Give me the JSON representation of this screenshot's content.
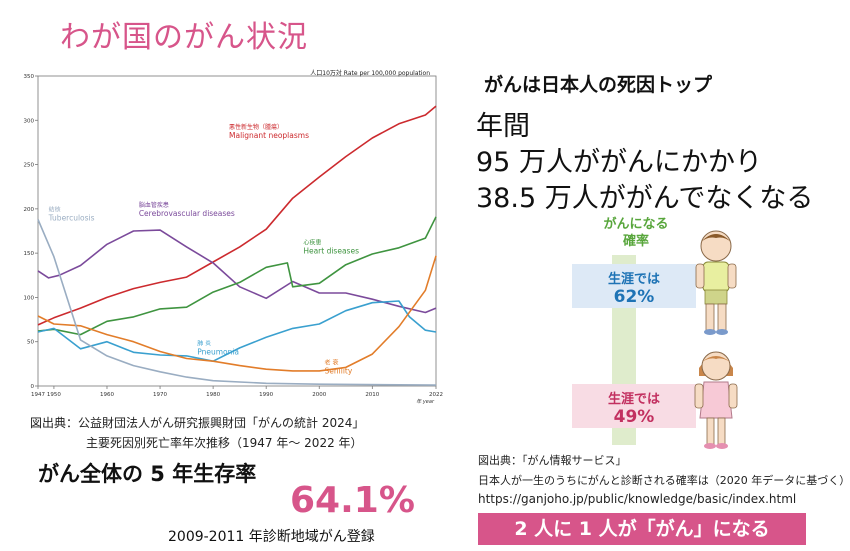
{
  "page_title": "わが国のがん状況",
  "chart_data": {
    "type": "line",
    "unit_label": "人口10万対   Rate per 100,000 population",
    "ylim": [
      0,
      350
    ],
    "yticks": [
      0,
      50,
      100,
      150,
      200,
      250,
      300,
      350
    ],
    "xlim": [
      1947,
      2022
    ],
    "xticks": [
      {
        "value": 1947,
        "label": "1947"
      },
      {
        "value": 1950,
        "label": "1950"
      },
      {
        "value": 1960,
        "label": "1960"
      },
      {
        "value": 1970,
        "label": "1970"
      },
      {
        "value": 1980,
        "label": "1980"
      },
      {
        "value": 1990,
        "label": "1990"
      },
      {
        "value": 2000,
        "label": "2000"
      },
      {
        "value": 2010,
        "label": "2010"
      },
      {
        "value": 2022,
        "label": "2022"
      }
    ],
    "x_unit": "年 year",
    "series": [
      {
        "key": "malignant",
        "name_ja": "悪性新生物（腫瘍）",
        "name_en": "Malignant neoplasms",
        "color": "#cc2a2e",
        "points": [
          [
            1947,
            69
          ],
          [
            1950,
            77
          ],
          [
            1955,
            88
          ],
          [
            1960,
            100
          ],
          [
            1965,
            110
          ],
          [
            1970,
            117
          ],
          [
            1975,
            123
          ],
          [
            1980,
            140
          ],
          [
            1985,
            157
          ],
          [
            1990,
            177
          ],
          [
            1995,
            212
          ],
          [
            2000,
            236
          ],
          [
            2005,
            259
          ],
          [
            2010,
            280
          ],
          [
            2015,
            296
          ],
          [
            2020,
            306
          ],
          [
            2022,
            316
          ]
        ]
      },
      {
        "key": "cerebro",
        "name_ja": "脳血管疾患",
        "name_en": "Cerebrovascular diseases",
        "color": "#7b4a9b",
        "points": [
          [
            1947,
            130
          ],
          [
            1949,
            122
          ],
          [
            1951,
            125
          ],
          [
            1955,
            136
          ],
          [
            1960,
            160
          ],
          [
            1965,
            175
          ],
          [
            1970,
            176
          ],
          [
            1975,
            157
          ],
          [
            1980,
            139
          ],
          [
            1985,
            112
          ],
          [
            1990,
            99
          ],
          [
            1995,
            118
          ],
          [
            2000,
            105
          ],
          [
            2005,
            105
          ],
          [
            2010,
            98
          ],
          [
            2015,
            90
          ],
          [
            2020,
            83
          ],
          [
            2022,
            88
          ]
        ]
      },
      {
        "key": "heart",
        "name_ja": "心疾患",
        "name_en": "Heart diseases",
        "color": "#3f9440",
        "points": [
          [
            1947,
            62
          ],
          [
            1950,
            64
          ],
          [
            1955,
            58
          ],
          [
            1960,
            73
          ],
          [
            1965,
            78
          ],
          [
            1970,
            87
          ],
          [
            1975,
            89
          ],
          [
            1980,
            106
          ],
          [
            1985,
            117
          ],
          [
            1990,
            134
          ],
          [
            1994,
            139
          ],
          [
            1995,
            112
          ],
          [
            2000,
            116
          ],
          [
            2005,
            137
          ],
          [
            2010,
            149
          ],
          [
            2015,
            156
          ],
          [
            2020,
            167
          ],
          [
            2022,
            191
          ]
        ]
      },
      {
        "key": "pneumonia",
        "name_ja": "肺 炎",
        "name_en": "Pneumonia",
        "color": "#3aa0cf",
        "points": [
          [
            1947,
            61
          ],
          [
            1950,
            65
          ],
          [
            1955,
            42
          ],
          [
            1960,
            50
          ],
          [
            1965,
            38
          ],
          [
            1970,
            35
          ],
          [
            1975,
            34
          ],
          [
            1980,
            28
          ],
          [
            1985,
            43
          ],
          [
            1990,
            55
          ],
          [
            1995,
            65
          ],
          [
            2000,
            70
          ],
          [
            2005,
            85
          ],
          [
            2010,
            94
          ],
          [
            2015,
            96
          ],
          [
            2017,
            78
          ],
          [
            2020,
            63
          ],
          [
            2022,
            61
          ]
        ]
      },
      {
        "key": "senility",
        "name_ja": "老 衰",
        "name_en": "Senility",
        "color": "#e27d2a",
        "points": [
          [
            1947,
            79
          ],
          [
            1950,
            70
          ],
          [
            1955,
            68
          ],
          [
            1960,
            58
          ],
          [
            1965,
            50
          ],
          [
            1970,
            39
          ],
          [
            1975,
            31
          ],
          [
            1980,
            28
          ],
          [
            1985,
            23
          ],
          [
            1990,
            19
          ],
          [
            1995,
            17
          ],
          [
            2000,
            17
          ],
          [
            2005,
            21
          ],
          [
            2010,
            36
          ],
          [
            2015,
            67
          ],
          [
            2020,
            108
          ],
          [
            2022,
            147
          ]
        ]
      },
      {
        "key": "tb",
        "name_ja": "結核",
        "name_en": "Tuberculosis",
        "color": "#9aadc2",
        "points": [
          [
            1947,
            188
          ],
          [
            1950,
            146
          ],
          [
            1955,
            52
          ],
          [
            1960,
            34
          ],
          [
            1965,
            23
          ],
          [
            1970,
            16
          ],
          [
            1975,
            10
          ],
          [
            1980,
            6
          ],
          [
            1990,
            3
          ],
          [
            2000,
            2
          ],
          [
            2022,
            1
          ]
        ]
      }
    ]
  },
  "left_source": {
    "line1": "図出典：公益財団法人がん研究振興財団「がんの統計 2024」",
    "line2": "主要死因別死亡率年次推移（1947 年〜 2022 年）"
  },
  "survival": {
    "label": "がん全体の 5 年生存率",
    "value": "64.1%",
    "note": "2009-2011 年診断地域がん登録"
  },
  "right": {
    "heading": "がんは日本人の死因トップ",
    "line1": "年間",
    "line2": "95 万人ががんにかかり",
    "line3": "38.5 万人ががんでなくなる",
    "prob_header_1": "がんになる",
    "prob_header_2": "確率",
    "male": {
      "label": "生涯では",
      "value": "62%",
      "color": "#1e73b5"
    },
    "female": {
      "label": "生涯では",
      "value": "49%",
      "color": "#c23060"
    },
    "source1": "図出典：「がん情報サービス」",
    "source2": "日本人が一生のうちにがんと診断される確率は（2020 年データに基づく）",
    "source3": "https://ganjoho.jp/public/knowledge/basic/index.html",
    "banner": "2 人に 1 人が「がん」になる"
  }
}
